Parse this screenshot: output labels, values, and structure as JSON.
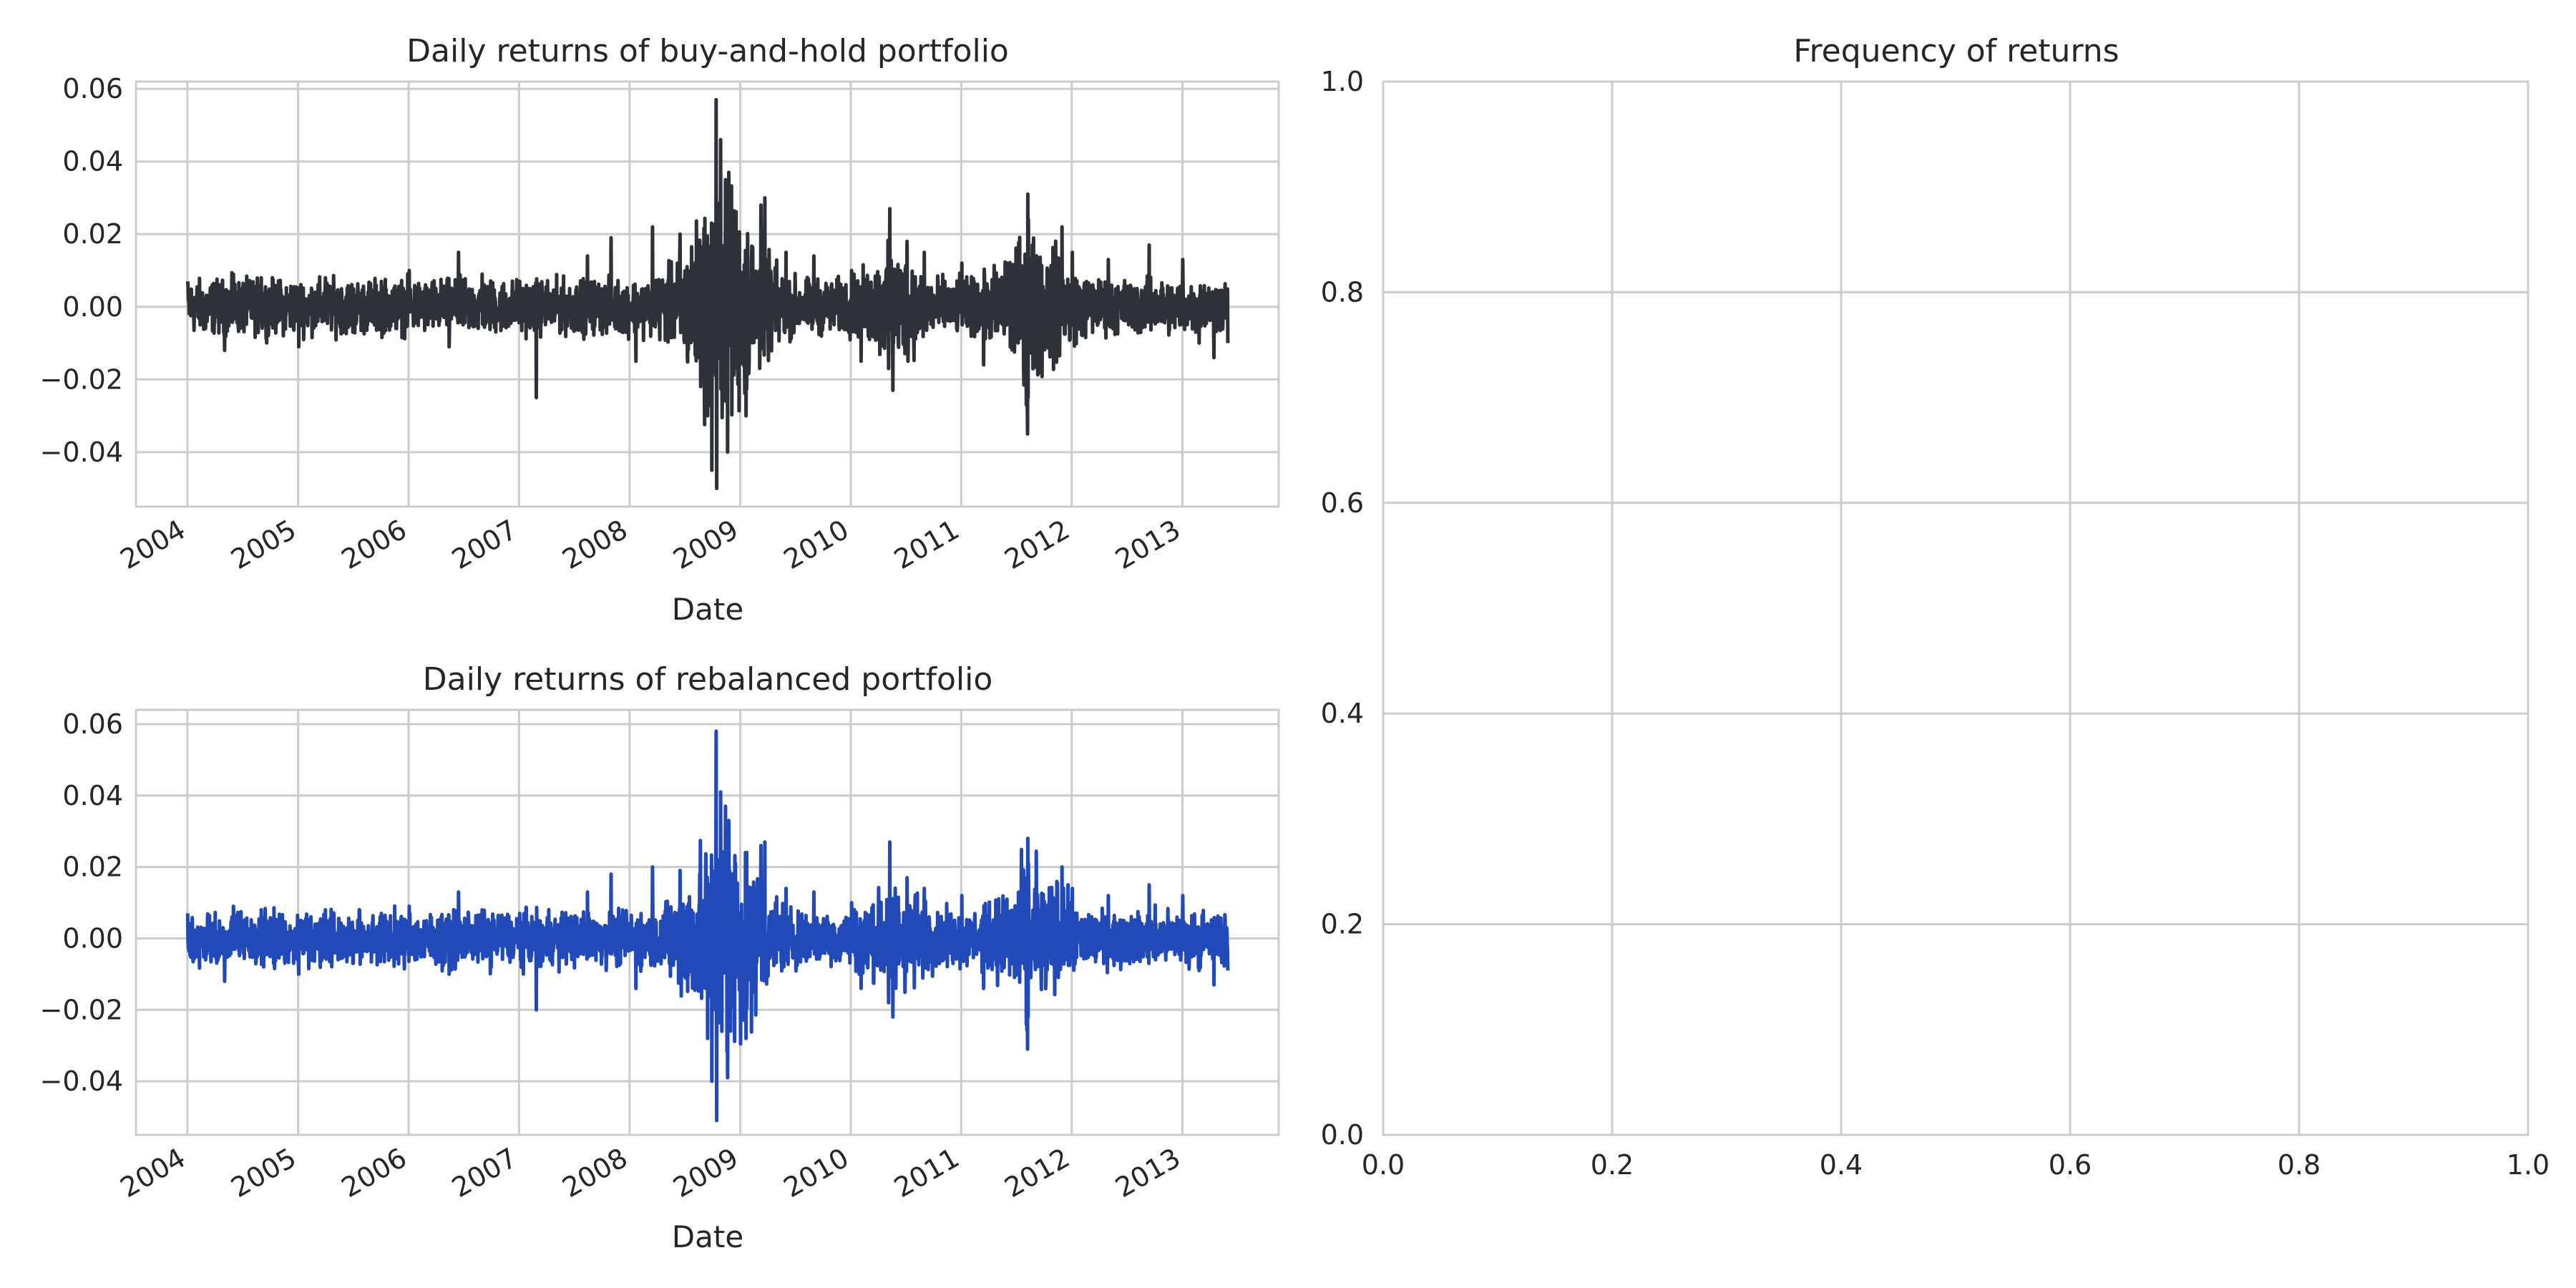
{
  "chart_data": [
    {
      "type": "line",
      "title": "Daily returns of buy-and-hold portfolio",
      "xlabel": "Date",
      "ylabel": "",
      "x_range": [
        "2003-07-15",
        "2013-11-15"
      ],
      "ylim": [
        -0.055,
        0.062
      ],
      "x_ticks": [
        "2004",
        "2005",
        "2006",
        "2007",
        "2008",
        "2009",
        "2010",
        "2011",
        "2012",
        "2013"
      ],
      "y_ticks": [
        "0.06",
        "0.04",
        "0.02",
        "0.00",
        "−0.02",
        "−0.04"
      ],
      "grid": true,
      "color": "#2e3238",
      "series": [
        {
          "dates": [
            "2004-01-02",
            "2004-03-01",
            "2004-05-03",
            "2004-06-01",
            "2004-09-01",
            "2005-01-03",
            "2005-04-01",
            "2005-07-01",
            "2005-10-03",
            "2006-01-03",
            "2006-05-15",
            "2006-06-15",
            "2006-09-01",
            "2007-01-03",
            "2007-02-27",
            "2007-08-15",
            "2007-11-01",
            "2008-01-22",
            "2008-03-17",
            "2008-06-16",
            "2008-09-15",
            "2008-09-29",
            "2008-10-13",
            "2008-10-15",
            "2008-10-28",
            "2008-11-13",
            "2008-11-20",
            "2008-11-24",
            "2008-12-16",
            "2009-01-20",
            "2009-03-10",
            "2009-03-23",
            "2009-06-01",
            "2009-09-01",
            "2010-01-04",
            "2010-02-04",
            "2010-05-06",
            "2010-05-10",
            "2010-05-20",
            "2010-07-06",
            "2010-09-01",
            "2011-01-03",
            "2011-03-16",
            "2011-06-01",
            "2011-08-04",
            "2011-08-08",
            "2011-08-09",
            "2011-08-10",
            "2011-08-11",
            "2011-11-30",
            "2012-01-03",
            "2012-05-01",
            "2012-09-13",
            "2013-01-02",
            "2013-02-25",
            "2013-04-15",
            "2013-05-31"
          ],
          "returns": [
            0.007,
            -0.006,
            -0.012,
            0.009,
            0.008,
            -0.011,
            0.008,
            -0.007,
            0.007,
            0.01,
            -0.011,
            0.015,
            0.009,
            0.007,
            -0.025,
            0.014,
            0.019,
            -0.015,
            0.022,
            0.02,
            -0.03,
            -0.045,
            0.057,
            -0.05,
            0.046,
            0.035,
            -0.04,
            0.037,
            0.022,
            -0.03,
            0.028,
            0.03,
            0.015,
            0.014,
            0.01,
            -0.015,
            -0.017,
            0.027,
            -0.023,
            0.018,
            0.015,
            0.012,
            -0.016,
            0.012,
            -0.027,
            -0.035,
            0.031,
            -0.025,
            0.024,
            0.022,
            0.015,
            0.013,
            0.017,
            0.013,
            -0.01,
            -0.014,
            -0.01
          ]
        }
      ]
    },
    {
      "type": "line",
      "title": "Daily returns of rebalanced portfolio",
      "xlabel": "Date",
      "ylabel": "",
      "x_range": [
        "2003-07-15",
        "2013-11-15"
      ],
      "ylim": [
        -0.055,
        0.064
      ],
      "x_ticks": [
        "2004",
        "2005",
        "2006",
        "2007",
        "2008",
        "2009",
        "2010",
        "2011",
        "2012",
        "2013"
      ],
      "y_ticks": [
        "0.06",
        "0.04",
        "0.02",
        "0.00",
        "−0.02",
        "−0.04"
      ],
      "grid": true,
      "color": "#2249b8",
      "series": [
        {
          "dates": [
            "2004-01-02",
            "2004-03-01",
            "2004-05-03",
            "2004-06-01",
            "2004-09-01",
            "2005-01-03",
            "2005-04-01",
            "2005-07-01",
            "2005-10-03",
            "2006-01-03",
            "2006-05-15",
            "2006-06-15",
            "2006-09-01",
            "2007-01-03",
            "2007-02-27",
            "2007-08-15",
            "2007-11-01",
            "2008-01-22",
            "2008-03-17",
            "2008-06-16",
            "2008-09-15",
            "2008-09-29",
            "2008-10-13",
            "2008-10-15",
            "2008-10-28",
            "2008-11-13",
            "2008-11-20",
            "2008-11-24",
            "2008-12-16",
            "2009-01-20",
            "2009-03-10",
            "2009-03-23",
            "2009-06-01",
            "2009-09-01",
            "2010-01-04",
            "2010-02-04",
            "2010-05-06",
            "2010-05-10",
            "2010-05-20",
            "2010-07-06",
            "2010-09-01",
            "2011-01-03",
            "2011-03-16",
            "2011-06-01",
            "2011-08-04",
            "2011-08-08",
            "2011-08-09",
            "2011-08-10",
            "2011-08-11",
            "2011-11-30",
            "2012-01-03",
            "2012-05-01",
            "2012-09-13",
            "2013-01-02",
            "2013-02-25",
            "2013-04-15",
            "2013-05-31"
          ],
          "returns": [
            0.007,
            -0.006,
            -0.012,
            0.009,
            0.008,
            -0.01,
            0.008,
            -0.007,
            0.007,
            0.009,
            -0.01,
            0.013,
            0.008,
            0.007,
            -0.02,
            0.013,
            0.018,
            -0.014,
            0.02,
            0.019,
            -0.028,
            -0.04,
            0.058,
            -0.051,
            0.041,
            0.037,
            -0.039,
            0.033,
            0.021,
            -0.028,
            0.026,
            0.027,
            0.014,
            0.013,
            0.01,
            -0.014,
            -0.018,
            0.027,
            -0.022,
            0.017,
            0.014,
            0.012,
            -0.014,
            0.011,
            -0.024,
            -0.031,
            0.028,
            -0.022,
            0.021,
            0.02,
            0.014,
            0.012,
            0.015,
            0.012,
            -0.009,
            -0.013,
            -0.009
          ]
        }
      ]
    },
    {
      "type": "bar",
      "title": "Frequency of returns",
      "xlabel": "",
      "ylabel": "",
      "xlim": [
        0.0,
        1.0
      ],
      "ylim": [
        0.0,
        1.0
      ],
      "x_ticks": [
        "0.0",
        "0.2",
        "0.4",
        "0.6",
        "0.8",
        "1.0"
      ],
      "y_ticks": [
        "1.0",
        "0.8",
        "0.6",
        "0.4",
        "0.2",
        "0.0"
      ],
      "grid": true,
      "values": []
    }
  ]
}
